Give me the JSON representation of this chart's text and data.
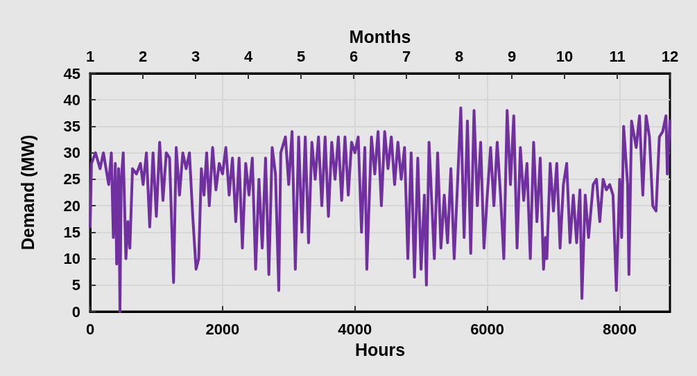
{
  "chart_data": {
    "type": "line",
    "xlabel": "Hours",
    "ylabel": "Demand (MW)",
    "x2label": "Months",
    "xlim": [
      0,
      8760
    ],
    "xticks": [
      0,
      2000,
      4000,
      6000,
      8000
    ],
    "ylim": [
      0,
      45
    ],
    "yticks": [
      0,
      5,
      10,
      15,
      20,
      25,
      30,
      35,
      40,
      45
    ],
    "x2lim": [
      1,
      12
    ],
    "x2ticks": [
      1,
      2,
      3,
      4,
      5,
      6,
      7,
      8,
      9,
      10,
      11,
      12
    ],
    "grid": true,
    "marker": "none",
    "line_style": "solid",
    "series": [
      {
        "color": "#7030a0",
        "x": [
          0,
          20,
          80,
          150,
          200,
          280,
          320,
          350,
          380,
          400,
          430,
          450,
          470,
          500,
          540,
          570,
          600,
          640,
          700,
          760,
          800,
          850,
          900,
          950,
          1000,
          1050,
          1100,
          1150,
          1200,
          1260,
          1300,
          1350,
          1400,
          1450,
          1500,
          1550,
          1600,
          1640,
          1680,
          1720,
          1760,
          1800,
          1850,
          1900,
          1950,
          2000,
          2050,
          2100,
          2150,
          2200,
          2250,
          2300,
          2350,
          2400,
          2450,
          2500,
          2550,
          2600,
          2650,
          2700,
          2750,
          2800,
          2850,
          2880,
          2950,
          3000,
          3050,
          3100,
          3150,
          3200,
          3250,
          3300,
          3350,
          3400,
          3450,
          3500,
          3550,
          3600,
          3650,
          3700,
          3750,
          3800,
          3850,
          3900,
          3950,
          4000,
          4050,
          4100,
          4150,
          4180,
          4250,
          4300,
          4350,
          4400,
          4450,
          4500,
          4550,
          4600,
          4650,
          4700,
          4750,
          4800,
          4850,
          4900,
          4950,
          5000,
          5050,
          5080,
          5120,
          5200,
          5250,
          5300,
          5350,
          5400,
          5450,
          5500,
          5550,
          5600,
          5650,
          5700,
          5750,
          5800,
          5850,
          5900,
          5950,
          6000,
          6050,
          6100,
          6150,
          6200,
          6250,
          6300,
          6350,
          6400,
          6450,
          6500,
          6550,
          6600,
          6650,
          6700,
          6750,
          6800,
          6850,
          6880,
          6900,
          6950,
          7000,
          7050,
          7100,
          7150,
          7200,
          7250,
          7300,
          7350,
          7400,
          7430,
          7480,
          7530,
          7600,
          7650,
          7700,
          7750,
          7800,
          7850,
          7900,
          7950,
          8000,
          8030,
          8060,
          8120,
          8140,
          8180,
          8250,
          8300,
          8350,
          8400,
          8450,
          8500,
          8550,
          8600,
          8650,
          8700,
          8720,
          8760
        ],
        "values": [
          16,
          28,
          30,
          27,
          30,
          24,
          30,
          14,
          28,
          9,
          27,
          0,
          25,
          30,
          10,
          17,
          12,
          27,
          26,
          28,
          24,
          30,
          16,
          30,
          18,
          32,
          21,
          30,
          29,
          5.5,
          31,
          22,
          30,
          27,
          30,
          18,
          8,
          10,
          27,
          22,
          30,
          20,
          31,
          23,
          28,
          26,
          31,
          22,
          29,
          17,
          29,
          12,
          28,
          22,
          29,
          8,
          25,
          12,
          29,
          7,
          31,
          26,
          4,
          30,
          33,
          24,
          34,
          8,
          33,
          15,
          33,
          13,
          32,
          25,
          33,
          20,
          33,
          18,
          32,
          25,
          33,
          21,
          33,
          22,
          32,
          30,
          33,
          15,
          31,
          8,
          33,
          26,
          34,
          20,
          34,
          27,
          33,
          24,
          32,
          25,
          31,
          10,
          30,
          6.5,
          29,
          8,
          22,
          5,
          32,
          10,
          30,
          12,
          22,
          13,
          27,
          10,
          24,
          38.5,
          14,
          36,
          11,
          38,
          20,
          32,
          12,
          22,
          31,
          20,
          32,
          22,
          10,
          38,
          24,
          37,
          12,
          31,
          21,
          28,
          10,
          32,
          17,
          29,
          8,
          14,
          10,
          28,
          19,
          28,
          12,
          24,
          28,
          13,
          22,
          13,
          23,
          2.5,
          22,
          14,
          24,
          25,
          17,
          25,
          23,
          24,
          22,
          4,
          25,
          14,
          35,
          24,
          7,
          36,
          31,
          37,
          22,
          37,
          33,
          20,
          19,
          33,
          34,
          37,
          26,
          36
        ]
      }
    ]
  }
}
